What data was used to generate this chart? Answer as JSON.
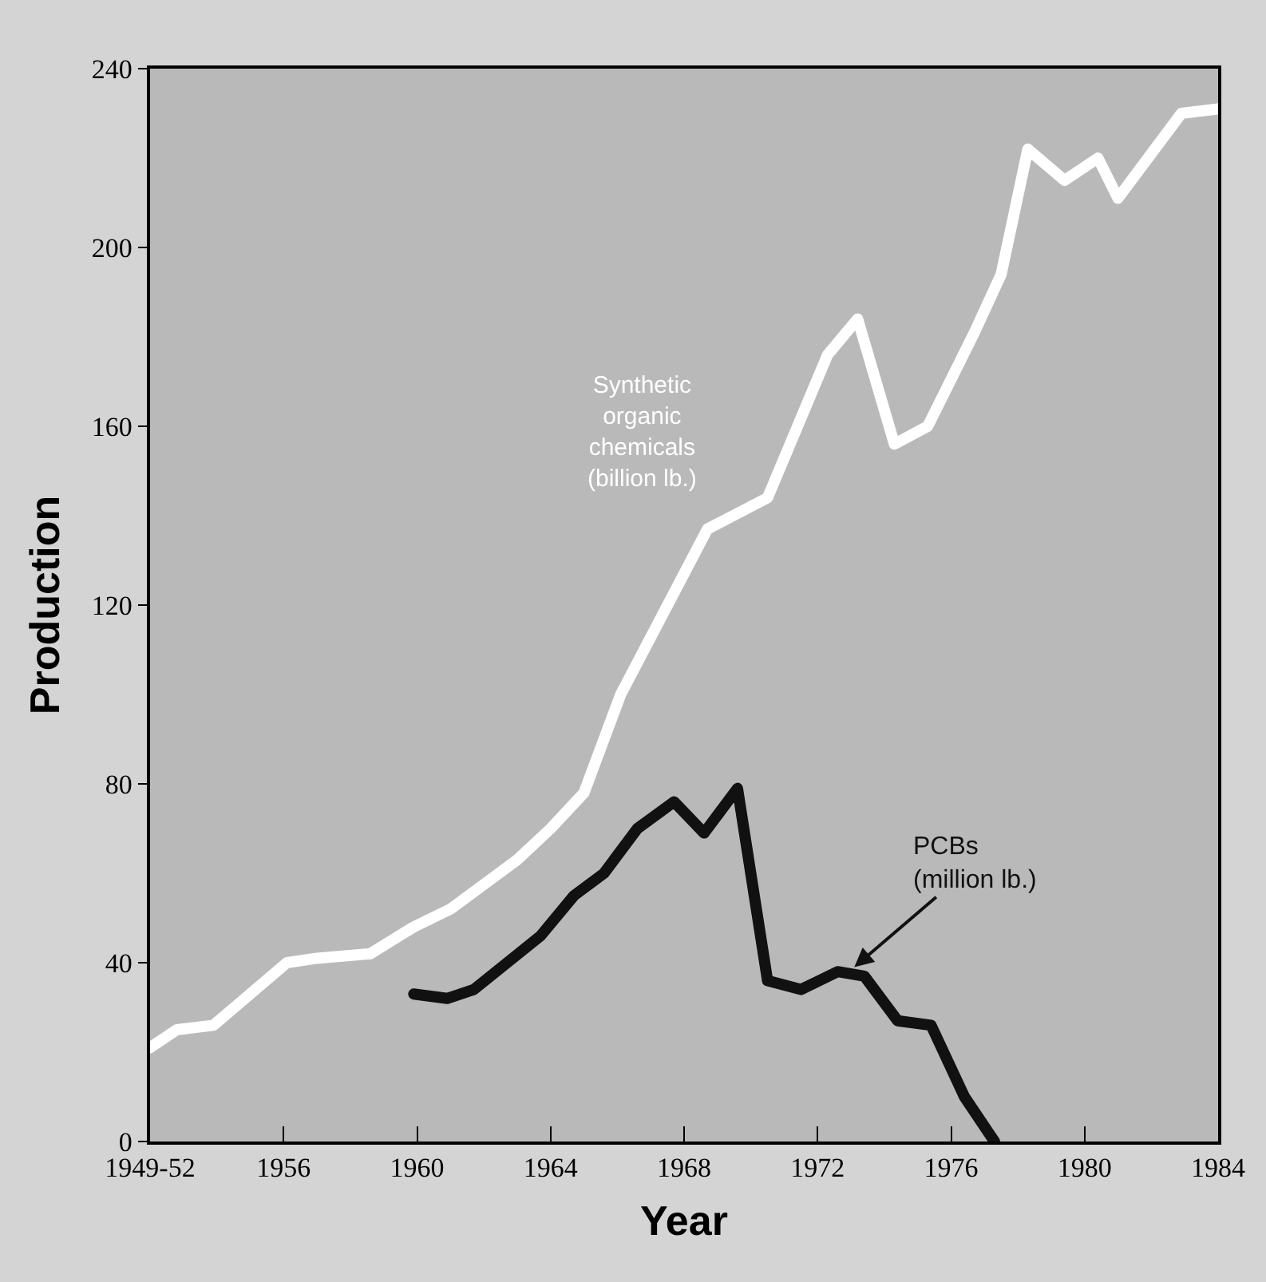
{
  "chart_data": {
    "type": "line",
    "xlabel": "Year",
    "ylabel": "Production",
    "xlim": [
      1952,
      1984
    ],
    "xticks": [
      {
        "value": 1952,
        "label": "1949-52"
      },
      1956,
      1960,
      1964,
      1968,
      1972,
      1976,
      1980,
      1984
    ],
    "ylim": [
      0,
      240
    ],
    "yticks": [
      0,
      40,
      80,
      120,
      160,
      200,
      240
    ],
    "marker": "none",
    "line_style": "solid",
    "series": [
      {
        "color": "#ffffff",
        "x": [
          1952,
          1952.8,
          1953.9,
          1956.1,
          1957,
          1958.6,
          1959.9,
          1961,
          1963,
          1964,
          1965,
          1966.1,
          1968.7,
          1970.5,
          1972.3,
          1973.2,
          1974.3,
          1975.3,
          1976.7,
          1977.5,
          1978.3,
          1979.4,
          1980.4,
          1981,
          1982.9,
          1984
        ],
        "values": [
          21,
          25,
          26,
          40,
          41,
          42,
          48,
          52,
          63,
          70,
          78,
          100,
          137,
          144,
          176,
          184,
          156,
          160,
          181,
          194,
          222,
          215,
          220,
          211,
          230,
          231
        ]
      },
      {
        "color": "#111111",
        "x": [
          1959.9,
          1960.9,
          1961.7,
          1963.7,
          1964.7,
          1965.6,
          1966.6,
          1967.7,
          1968.6,
          1969.6,
          1970.5,
          1971.5,
          1972.6,
          1973.4,
          1974.4,
          1975.4,
          1976.4,
          1977.3
        ],
        "values": [
          33,
          32,
          34,
          46,
          55,
          60,
          70,
          76,
          69,
          79,
          36,
          34,
          38,
          37,
          27,
          26,
          10,
          0
        ]
      }
    ],
    "annotations": [
      "Synthetic\norganic\nchemicals\n(billion lb.)",
      {
        "text": "PCBs\n(million lb.)",
        "x": 1973.1,
        "y": 39
      }
    ]
  }
}
